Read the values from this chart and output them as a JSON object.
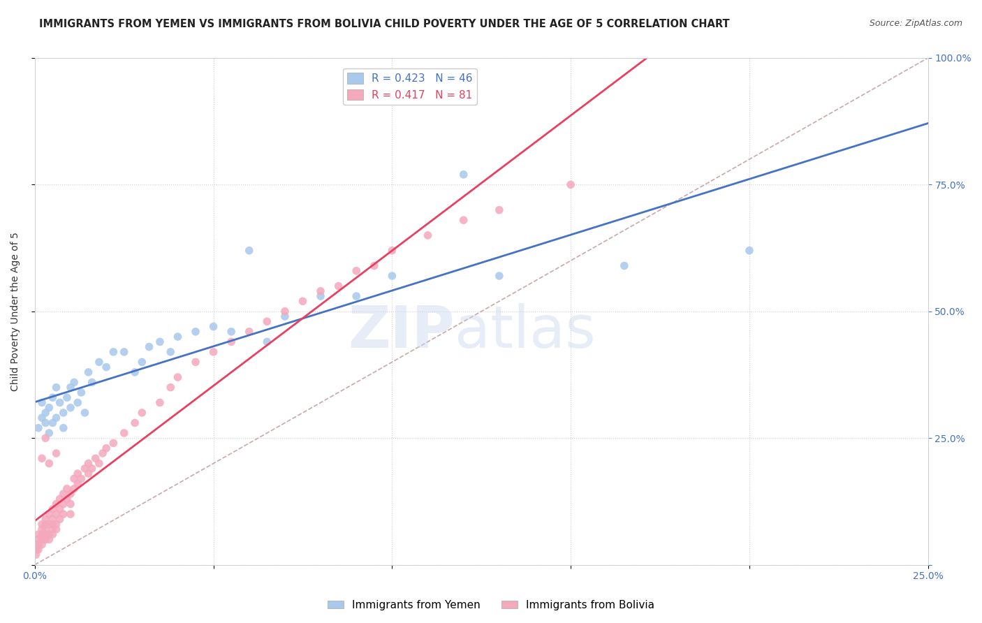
{
  "title": "IMMIGRANTS FROM YEMEN VS IMMIGRANTS FROM BOLIVIA CHILD POVERTY UNDER THE AGE OF 5 CORRELATION CHART",
  "source": "Source: ZipAtlas.com",
  "ylabel": "Child Poverty Under the Age of 5",
  "xlim": [
    0.0,
    0.25
  ],
  "ylim": [
    0.0,
    1.0
  ],
  "xticks": [
    0.0,
    0.05,
    0.1,
    0.15,
    0.2,
    0.25
  ],
  "yticks": [
    0.0,
    0.25,
    0.5,
    0.75,
    1.0
  ],
  "xtick_labels": [
    "0.0%",
    "",
    "",
    "",
    "",
    "25.0%"
  ],
  "ytick_labels_right": [
    "",
    "25.0%",
    "50.0%",
    "75.0%",
    "100.0%"
  ],
  "legend_labels": [
    "Immigrants from Yemen",
    "Immigrants from Bolivia"
  ],
  "r_yemen": 0.423,
  "n_yemen": 46,
  "r_bolivia": 0.417,
  "n_bolivia": 81,
  "color_yemen": "#A8C8EC",
  "color_bolivia": "#F4A8BC",
  "color_line_yemen": "#4472C4",
  "color_line_bolivia": "#E84060",
  "color_diag": "#C8A8A8",
  "yemen_x": [
    0.001,
    0.002,
    0.002,
    0.003,
    0.003,
    0.004,
    0.004,
    0.005,
    0.005,
    0.006,
    0.006,
    0.007,
    0.008,
    0.008,
    0.009,
    0.01,
    0.01,
    0.011,
    0.012,
    0.013,
    0.014,
    0.015,
    0.016,
    0.018,
    0.02,
    0.022,
    0.025,
    0.028,
    0.03,
    0.032,
    0.035,
    0.038,
    0.04,
    0.045,
    0.05,
    0.055,
    0.06,
    0.065,
    0.07,
    0.08,
    0.09,
    0.1,
    0.13,
    0.165,
    0.2,
    0.12
  ],
  "yemen_y": [
    0.27,
    0.29,
    0.32,
    0.3,
    0.28,
    0.31,
    0.26,
    0.33,
    0.28,
    0.35,
    0.29,
    0.32,
    0.3,
    0.27,
    0.33,
    0.35,
    0.31,
    0.36,
    0.32,
    0.34,
    0.3,
    0.38,
    0.36,
    0.4,
    0.39,
    0.42,
    0.42,
    0.38,
    0.4,
    0.43,
    0.44,
    0.42,
    0.45,
    0.46,
    0.47,
    0.46,
    0.62,
    0.44,
    0.49,
    0.53,
    0.53,
    0.57,
    0.57,
    0.59,
    0.62,
    0.77
  ],
  "bolivia_x": [
    0.0003,
    0.0005,
    0.0005,
    0.001,
    0.001,
    0.001,
    0.001,
    0.002,
    0.002,
    0.002,
    0.002,
    0.002,
    0.003,
    0.003,
    0.003,
    0.003,
    0.003,
    0.004,
    0.004,
    0.004,
    0.004,
    0.005,
    0.005,
    0.005,
    0.005,
    0.005,
    0.006,
    0.006,
    0.006,
    0.006,
    0.007,
    0.007,
    0.007,
    0.008,
    0.008,
    0.008,
    0.009,
    0.009,
    0.01,
    0.01,
    0.01,
    0.011,
    0.011,
    0.012,
    0.012,
    0.013,
    0.014,
    0.015,
    0.015,
    0.016,
    0.017,
    0.018,
    0.019,
    0.02,
    0.022,
    0.025,
    0.028,
    0.03,
    0.035,
    0.038,
    0.04,
    0.045,
    0.05,
    0.055,
    0.06,
    0.065,
    0.07,
    0.075,
    0.08,
    0.085,
    0.09,
    0.095,
    0.1,
    0.11,
    0.12,
    0.13,
    0.15,
    0.006,
    0.003,
    0.002,
    0.004
  ],
  "bolivia_y": [
    0.02,
    0.03,
    0.04,
    0.03,
    0.05,
    0.06,
    0.04,
    0.05,
    0.07,
    0.08,
    0.06,
    0.04,
    0.06,
    0.08,
    0.09,
    0.05,
    0.07,
    0.08,
    0.1,
    0.06,
    0.05,
    0.09,
    0.11,
    0.07,
    0.06,
    0.08,
    0.1,
    0.12,
    0.08,
    0.07,
    0.11,
    0.13,
    0.09,
    0.12,
    0.14,
    0.1,
    0.13,
    0.15,
    0.12,
    0.14,
    0.1,
    0.15,
    0.17,
    0.16,
    0.18,
    0.17,
    0.19,
    0.18,
    0.2,
    0.19,
    0.21,
    0.2,
    0.22,
    0.23,
    0.24,
    0.26,
    0.28,
    0.3,
    0.32,
    0.35,
    0.37,
    0.4,
    0.42,
    0.44,
    0.46,
    0.48,
    0.5,
    0.52,
    0.54,
    0.55,
    0.58,
    0.59,
    0.62,
    0.65,
    0.68,
    0.7,
    0.75,
    0.22,
    0.25,
    0.21,
    0.2
  ],
  "title_fontsize": 10.5,
  "axis_label_fontsize": 10,
  "tick_fontsize": 10,
  "legend_fontsize": 11,
  "source_fontsize": 9
}
